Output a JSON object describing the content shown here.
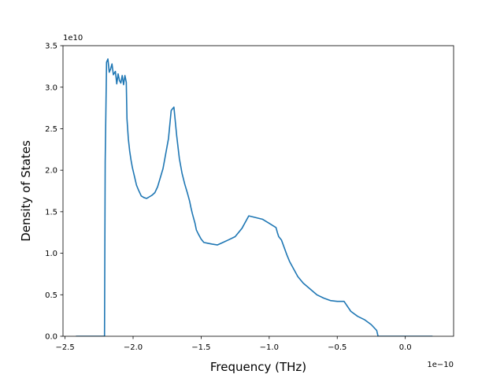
{
  "chart_data": {
    "type": "line",
    "title": "",
    "xlabel": "Frequency (THz)",
    "ylabel": "Density of States",
    "x_offset_label": "1e−10",
    "y_offset_label": "1e10",
    "x_unit_multiplier": 1e-10,
    "y_unit_multiplier": 10000000000.0,
    "xlim": [
      -2.515,
      0.355
    ],
    "ylim": [
      0,
      3.5
    ],
    "grid": false,
    "legend": "none",
    "x_ticks": [
      {
        "value": -2.5,
        "label": "−2.5"
      },
      {
        "value": -2.0,
        "label": "−2.0"
      },
      {
        "value": -1.5,
        "label": "−1.5"
      },
      {
        "value": -1.0,
        "label": "−1.0"
      },
      {
        "value": -0.5,
        "label": "−0.5"
      },
      {
        "value": 0.0,
        "label": "0.0"
      }
    ],
    "y_ticks": [
      {
        "value": 0.0,
        "label": "0.0"
      },
      {
        "value": 0.5,
        "label": "0.5"
      },
      {
        "value": 1.0,
        "label": "1.0"
      },
      {
        "value": 1.5,
        "label": "1.5"
      },
      {
        "value": 2.0,
        "label": "2.0"
      },
      {
        "value": 2.5,
        "label": "2.5"
      },
      {
        "value": 3.0,
        "label": "3.0"
      },
      {
        "value": 3.5,
        "label": "3.5"
      }
    ],
    "series": [
      {
        "color": "#1f77b4",
        "x": [
          -2.42,
          -2.21,
          -2.205,
          -2.195,
          -2.185,
          -2.175,
          -2.165,
          -2.155,
          -2.145,
          -2.13,
          -2.12,
          -2.11,
          -2.1,
          -2.09,
          -2.08,
          -2.07,
          -2.06,
          -2.05,
          -2.045,
          -2.035,
          -2.025,
          -2.015,
          -2.005,
          -1.995,
          -1.985,
          -1.975,
          -1.96,
          -1.94,
          -1.92,
          -1.9,
          -1.88,
          -1.86,
          -1.84,
          -1.82,
          -1.8,
          -1.78,
          -1.76,
          -1.74,
          -1.72,
          -1.7,
          -1.68,
          -1.66,
          -1.64,
          -1.62,
          -1.6,
          -1.585,
          -1.575,
          -1.565,
          -1.555,
          -1.545,
          -1.535,
          -1.52,
          -1.5,
          -1.48,
          -1.45,
          -1.42,
          -1.38,
          -1.34,
          -1.3,
          -1.25,
          -1.2,
          -1.15,
          -1.1,
          -1.05,
          -1.0,
          -0.97,
          -0.95,
          -0.94,
          -0.93,
          -0.91,
          -0.89,
          -0.87,
          -0.85,
          -0.82,
          -0.79,
          -0.75,
          -0.7,
          -0.65,
          -0.6,
          -0.55,
          -0.5,
          -0.45,
          -0.4,
          -0.35,
          -0.3,
          -0.25,
          -0.21,
          -0.2,
          -0.19,
          -0.17,
          -0.14,
          -0.1,
          -0.05,
          0.0,
          0.01,
          0.2
        ],
        "y": [
          0.0,
          0.0,
          2.1,
          3.3,
          3.34,
          3.18,
          3.22,
          3.28,
          3.15,
          3.19,
          3.04,
          3.16,
          3.08,
          3.05,
          3.14,
          3.03,
          3.14,
          3.06,
          2.62,
          2.38,
          2.23,
          2.12,
          2.03,
          1.96,
          1.89,
          1.82,
          1.76,
          1.69,
          1.67,
          1.66,
          1.68,
          1.7,
          1.73,
          1.8,
          1.91,
          2.02,
          2.2,
          2.38,
          2.72,
          2.76,
          2.42,
          2.14,
          1.96,
          1.83,
          1.72,
          1.63,
          1.55,
          1.48,
          1.42,
          1.36,
          1.28,
          1.23,
          1.17,
          1.13,
          1.12,
          1.11,
          1.1,
          1.13,
          1.16,
          1.2,
          1.3,
          1.45,
          1.43,
          1.41,
          1.36,
          1.33,
          1.31,
          1.25,
          1.2,
          1.16,
          1.07,
          0.98,
          0.9,
          0.81,
          0.72,
          0.64,
          0.57,
          0.5,
          0.46,
          0.43,
          0.42,
          0.42,
          0.3,
          0.24,
          0.2,
          0.14,
          0.07,
          0.0,
          0.0,
          0.0,
          0.0,
          0.0,
          0.0,
          0.0,
          0.0,
          0.0
        ]
      }
    ]
  }
}
